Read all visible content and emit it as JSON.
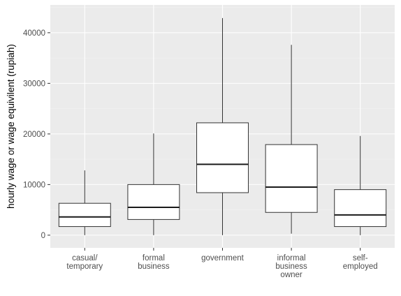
{
  "chart_data": {
    "type": "boxplot",
    "title": "",
    "xlabel": "",
    "ylabel": "hourly wage or wage equivilent (rupiah)",
    "ylim": [
      -2500,
      45500
    ],
    "yticks": [
      0,
      10000,
      20000,
      30000,
      40000
    ],
    "ytick_labels": [
      "0",
      "10000",
      "20000",
      "30000",
      "40000"
    ],
    "grid": true,
    "categories": [
      [
        "casual/",
        "temporary"
      ],
      [
        "formal",
        "business"
      ],
      [
        "government"
      ],
      [
        "informal",
        "business",
        "owner"
      ],
      [
        "self-",
        "employed"
      ]
    ],
    "boxes": [
      {
        "min": 0,
        "q1": 1700,
        "median": 3600,
        "q3": 6300,
        "max": 12800
      },
      {
        "min": 0,
        "q1": 3100,
        "median": 5500,
        "q3": 10000,
        "max": 20100
      },
      {
        "min": 0,
        "q1": 8400,
        "median": 14000,
        "q3": 22200,
        "max": 42900
      },
      {
        "min": 300,
        "q1": 4500,
        "median": 9500,
        "q3": 17900,
        "max": 37600
      },
      {
        "min": 0,
        "q1": 1700,
        "median": 4000,
        "q3": 9000,
        "max": 19600
      }
    ],
    "colors": {
      "panel": "#ebebeb",
      "grid_major": "#ffffff",
      "box_fill": "#ffffff",
      "box_stroke": "#333333",
      "median": "#1a1a1a"
    }
  }
}
